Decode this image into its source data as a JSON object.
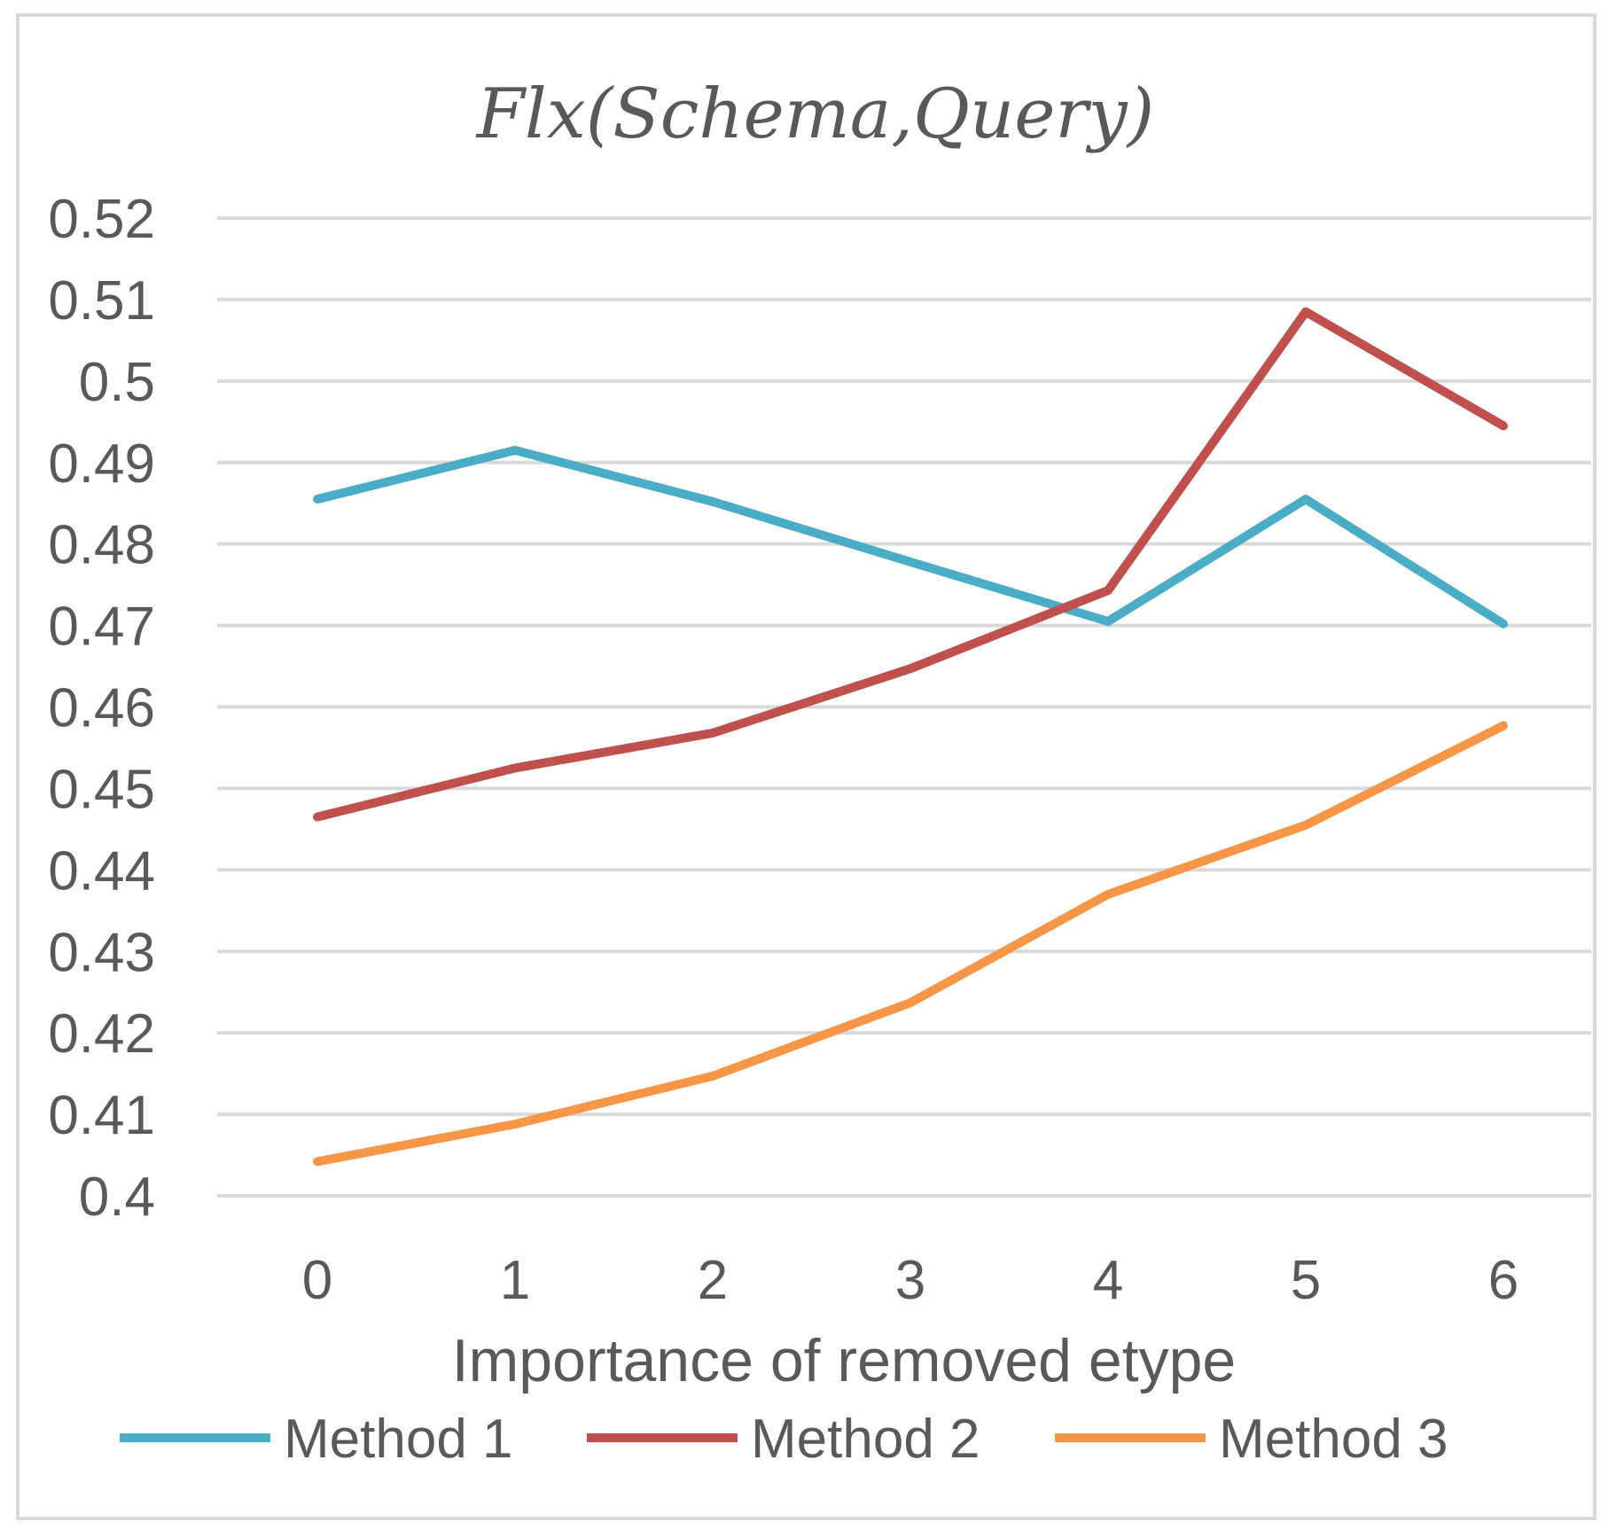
{
  "chart_data": {
    "type": "line",
    "title": "Flx(Schema,Query)",
    "xlabel": "Importance of removed etype",
    "ylabel": "",
    "categories": [
      "0",
      "1",
      "2",
      "3",
      "4",
      "5",
      "6"
    ],
    "ylim": [
      0.4,
      0.52
    ],
    "yticks": [
      "0.4",
      "0.41",
      "0.42",
      "0.43",
      "0.44",
      "0.45",
      "0.46",
      "0.47",
      "0.48",
      "0.49",
      "0.5",
      "0.51",
      "0.52"
    ],
    "grid": true,
    "legend_position": "bottom",
    "series": [
      {
        "name": "Method 1",
        "color": "#4bacc6",
        "values": [
          0.4855,
          0.4915,
          0.4852,
          0.4778,
          0.4705,
          0.4855,
          0.4702
        ]
      },
      {
        "name": "Method 2",
        "color": "#c0504d",
        "values": [
          0.4465,
          0.4525,
          0.4568,
          0.4647,
          0.4743,
          0.5085,
          0.4945
        ]
      },
      {
        "name": "Method 3",
        "color": "#f79646",
        "values": [
          0.4042,
          0.4088,
          0.4147,
          0.4237,
          0.437,
          0.4455,
          0.4577
        ]
      }
    ]
  }
}
